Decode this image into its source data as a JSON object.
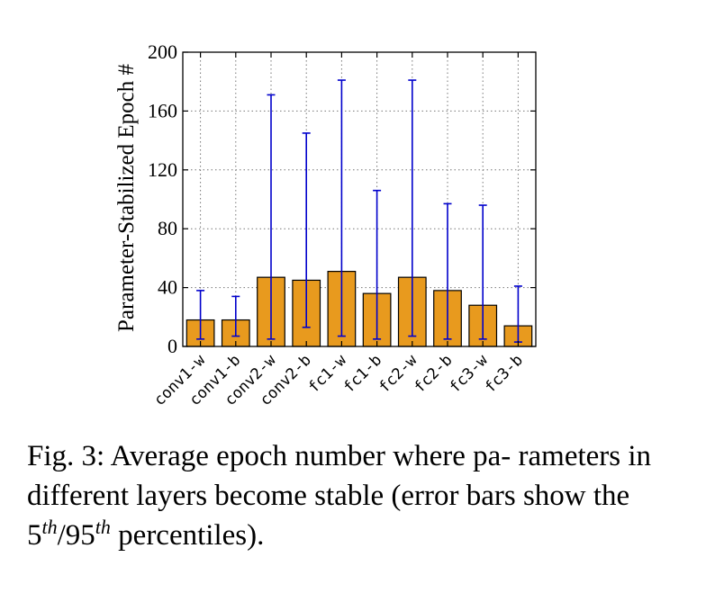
{
  "chart_data": {
    "type": "bar",
    "categories": [
      "conv1-w",
      "conv1-b",
      "conv2-w",
      "conv2-b",
      "fc1-w",
      "fc1-b",
      "fc2-w",
      "fc2-b",
      "fc3-w",
      "fc3-b"
    ],
    "values": [
      18,
      18,
      47,
      45,
      51,
      36,
      47,
      38,
      28,
      14
    ],
    "error_low": [
      5,
      7,
      5,
      13,
      7,
      5,
      7,
      5,
      5,
      3
    ],
    "error_high": [
      38,
      34,
      171,
      145,
      181,
      106,
      181,
      97,
      96,
      41
    ],
    "title": "",
    "xlabel": "",
    "ylabel": "Parameter-Stabilized Epoch #",
    "ylim": [
      0,
      200
    ],
    "yticks": [
      "0",
      "40",
      "80",
      "120",
      "160",
      "200"
    ],
    "grid": true,
    "colors": {
      "bar": "#e89a1e",
      "bar_edge": "#000000",
      "error": "#0000cc",
      "grid": "#777777"
    }
  },
  "caption": {
    "prefix": "Fig. 3: Average epoch number where pa- rameters in different layers become stable (error bars show the ",
    "p_low": "5",
    "sup1": "th",
    "slash": "/",
    "p_high": "95",
    "sup2": "th",
    "suffix": " percentiles)."
  }
}
